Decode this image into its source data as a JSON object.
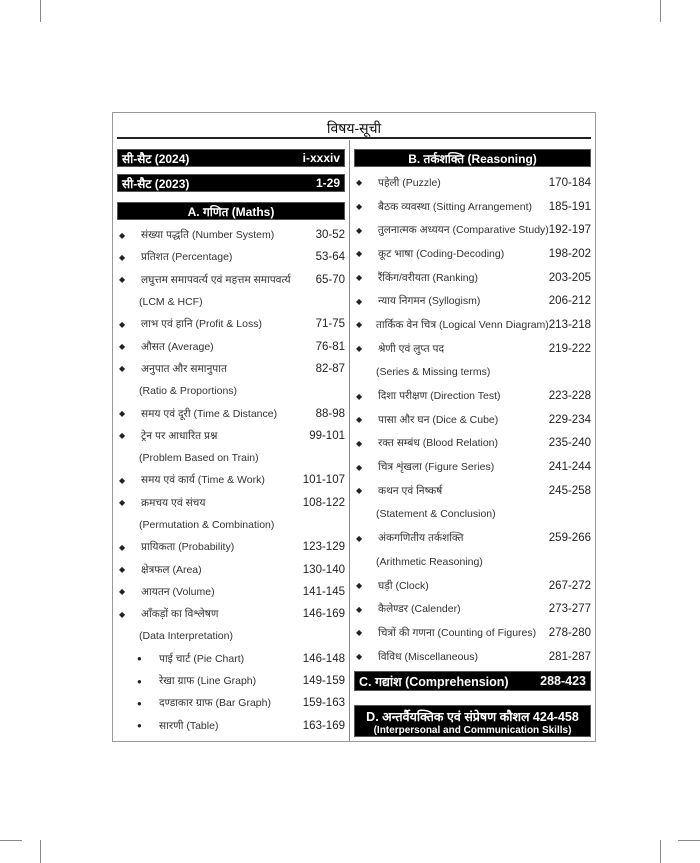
{
  "title": "विषय-सूची",
  "left": {
    "csat_2024": {
      "label": "सी-सैट  (2024)",
      "pages": "i-xxxiv"
    },
    "csat_2023": {
      "label": "सी-सैट  (2023)",
      "pages": "1-29"
    },
    "section_a": "A. गणित (Maths)",
    "items": [
      {
        "label": "संख्या पद्धति (Number System)",
        "pages": "30-52"
      },
      {
        "label": "प्रतिशत (Percentage)",
        "pages": "53-64"
      },
      {
        "label": "लघुत्तम समापवर्त्य एवं महत्तम समापवर्त्य",
        "pages": "65-70",
        "cont": "(LCM & HCF)"
      },
      {
        "label": "लाभ एवं हानि (Profit & Loss)",
        "pages": "71-75"
      },
      {
        "label": "औसत (Average)",
        "pages": "76-81"
      },
      {
        "label": "अनुपात और समानुपात",
        "pages": "82-87",
        "cont": "(Ratio & Proportions)"
      },
      {
        "label": "समय एवं दूरी (Time & Distance)",
        "pages": "88-98"
      },
      {
        "label": "ट्रेन पर आधारित प्रश्न",
        "pages": "99-101",
        "cont": "(Problem Based on Train)"
      },
      {
        "label": "समय एवं कार्य (Time & Work)",
        "pages": "101-107"
      },
      {
        "label": "क्रमचय एवं संचय",
        "pages": "108-122",
        "cont": "(Permutation & Combination)"
      },
      {
        "label": "प्रायिकता (Probability)",
        "pages": "123-129"
      },
      {
        "label": "क्षेत्रफल (Area)",
        "pages": "130-140"
      },
      {
        "label": "आयतन (Volume)",
        "pages": "141-145"
      },
      {
        "label": "आँकड़ों का विश्लेषण",
        "pages": "146-169",
        "cont": "(Data Interpretation)"
      },
      {
        "label": "पाई चार्ट (Pie Chart)",
        "pages": "146-148",
        "sub": true
      },
      {
        "label": "रेखा ग्राफ (Line Graph)",
        "pages": "149-159",
        "sub": true
      },
      {
        "label": "दण्डाकार ग्राफ (Bar Graph)",
        "pages": "159-163",
        "sub": true
      },
      {
        "label": "सारणी (Table)",
        "pages": "163-169",
        "sub": true
      }
    ]
  },
  "right": {
    "section_b": "B. तर्कशक्ति (Reasoning)",
    "items": [
      {
        "label": "पहेली (Puzzle)",
        "pages": "170-184"
      },
      {
        "label": "बैठक व्यवस्था (Sitting Arrangement)",
        "pages": "185-191"
      },
      {
        "label": "तुलनात्मक अध्ययन (Comparative Study)",
        "pages": "192-197"
      },
      {
        "label": "कूट भाषा (Coding-Decoding)",
        "pages": "198-202"
      },
      {
        "label": "रैंकिंग/वरीयता (Ranking)",
        "pages": "203-205"
      },
      {
        "label": "न्याय निगमन (Syllogism)",
        "pages": "206-212"
      },
      {
        "label": "तार्किक वेन चित्र (Logical Venn Diagram)",
        "pages": "213-218"
      },
      {
        "label": "श्रेणी एवं लुप्त पद",
        "pages": "219-222",
        "cont": "(Series & Missing terms)"
      },
      {
        "label": "दिशा परीक्षण (Direction Test)",
        "pages": "223-228"
      },
      {
        "label": "पासा और घन (Dice & Cube)",
        "pages": "229-234"
      },
      {
        "label": "रक्त सम्बंध (Blood Relation)",
        "pages": "235-240"
      },
      {
        "label": "चित्र शृंखला (Figure Series)",
        "pages": "241-244"
      },
      {
        "label": "कथन एवं निष्कर्ष",
        "pages": "245-258",
        "cont": "(Statement & Conclusion)"
      },
      {
        "label": "अंकगणितीय तर्कशक्ति",
        "pages": "259-266",
        "cont": "(Arithmetic Reasoning)"
      },
      {
        "label": "घड़ी (Clock)",
        "pages": "267-272"
      },
      {
        "label": "कैलेण्डर (Calender)",
        "pages": "273-277"
      },
      {
        "label": "चित्रों की गणना (Counting of Figures)",
        "pages": "278-280"
      },
      {
        "label": "विविध (Miscellaneous)",
        "pages": "281-287"
      }
    ],
    "section_c": {
      "label": "C. गद्यांश (Comprehension)",
      "pages": "288-423"
    },
    "section_d": {
      "label": "D. अन्तर्वैयक्तिक एवं संप्रेषण कौशल 424-458",
      "sub": "(Interpersonal and Communication Skills)"
    }
  }
}
